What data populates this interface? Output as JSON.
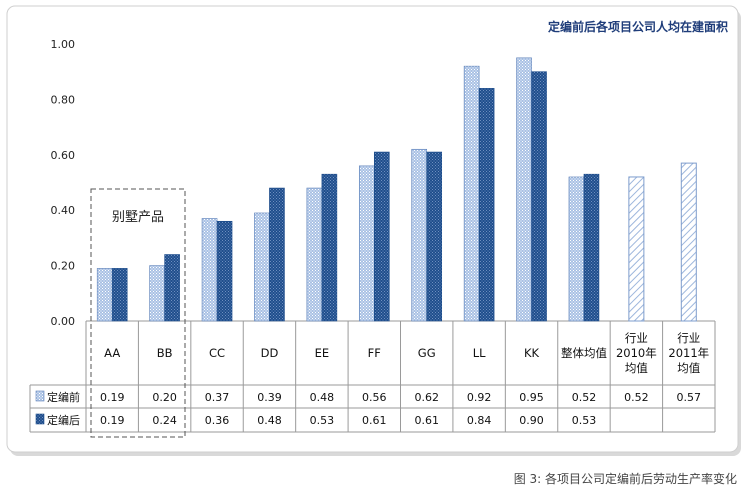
{
  "chart_data": {
    "type": "bar",
    "title": "定编前后各项目公司人均在建面积",
    "caption": "图 3: 各项目公司定编前后劳动生产率变化",
    "annotation": "别墅产品",
    "categories": [
      "AA",
      "BB",
      "CC",
      "DD",
      "EE",
      "FF",
      "GG",
      "LL",
      "KK",
      "整体均值",
      "行业2010年均值",
      "行业2011年均值"
    ],
    "category_lines": [
      [
        "AA"
      ],
      [
        "BB"
      ],
      [
        "CC"
      ],
      [
        "DD"
      ],
      [
        "EE"
      ],
      [
        "FF"
      ],
      [
        "GG"
      ],
      [
        "LL"
      ],
      [
        "KK"
      ],
      [
        "整体均值"
      ],
      [
        "行业",
        "2010年",
        "均值"
      ],
      [
        "行业",
        "2011年",
        "均值"
      ]
    ],
    "series": [
      {
        "name": "定编前",
        "values": [
          0.19,
          0.2,
          0.37,
          0.39,
          0.48,
          0.56,
          0.62,
          0.92,
          0.95,
          0.52,
          0.52,
          0.57
        ]
      },
      {
        "name": "定编后",
        "values": [
          0.19,
          0.24,
          0.36,
          0.48,
          0.53,
          0.61,
          0.61,
          0.84,
          0.9,
          0.53,
          null,
          null
        ]
      }
    ],
    "series_labels": [
      [
        "0.19",
        "0.20",
        "0.37",
        "0.39",
        "0.48",
        "0.56",
        "0.62",
        "0.92",
        "0.95",
        "0.52",
        "0.52",
        "0.57"
      ],
      [
        "0.19",
        "0.24",
        "0.36",
        "0.48",
        "0.53",
        "0.61",
        "0.61",
        "0.84",
        "0.90",
        "0.53",
        "",
        ""
      ]
    ],
    "industry_categories": [
      10,
      11
    ],
    "ylim": [
      0,
      1
    ],
    "yticks": [
      "0.00",
      "0.20",
      "0.40",
      "0.60",
      "0.80",
      "1.00"
    ],
    "grid": false,
    "legend": "data-table",
    "colors": {
      "before": "#a9c1e4",
      "before_hatch": "#ffffff",
      "before_edge": "#5b7fb8",
      "after": "#1f4e8c",
      "after_hatch": "#6f8fc0",
      "industry_fill": "#ffffff",
      "industry_hatch": "#9db6dc",
      "industry_edge": "#7d9ccc",
      "title": "#1f3d7a"
    }
  }
}
